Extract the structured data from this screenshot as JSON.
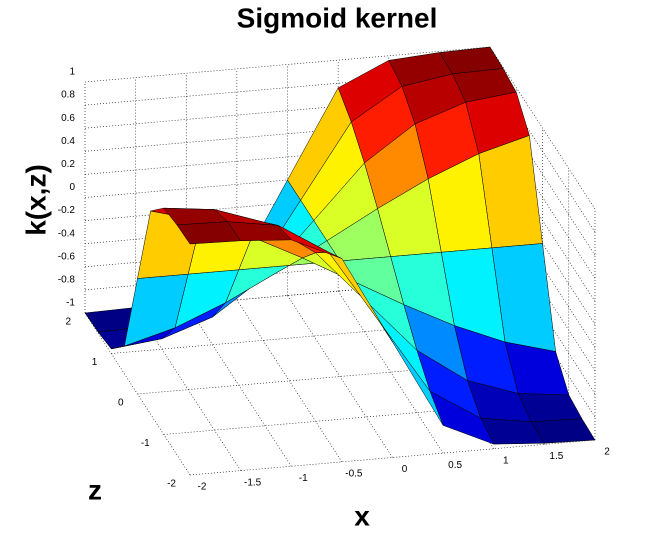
{
  "chart_data": {
    "type": "surface",
    "title": "Sigmoid kernel",
    "xlabel": "x",
    "zlabel": "z",
    "ylabel": "k(x,z)",
    "x": [
      -2,
      -1.5,
      -1,
      -0.5,
      0,
      0.5,
      1,
      1.5,
      2
    ],
    "z": [
      -2,
      -1.5,
      -1,
      -0.5,
      0,
      0.5,
      1,
      1.5,
      2
    ],
    "values": [
      [
        1,
        0.99,
        0.96,
        0.76,
        0,
        -0.76,
        -0.96,
        -0.99,
        -1
      ],
      [
        0.99,
        0.98,
        0.91,
        0.64,
        0,
        -0.64,
        -0.91,
        -0.98,
        -0.99
      ],
      [
        0.96,
        0.91,
        0.76,
        0.46,
        0,
        -0.46,
        -0.76,
        -0.91,
        -0.96
      ],
      [
        0.76,
        0.64,
        0.46,
        0.24,
        0,
        -0.24,
        -0.46,
        -0.64,
        -0.76
      ],
      [
        0,
        0,
        0,
        0,
        0,
        0,
        0,
        0,
        0
      ],
      [
        -0.76,
        -0.64,
        -0.46,
        -0.24,
        0,
        0.24,
        0.46,
        0.64,
        0.76
      ],
      [
        -0.96,
        -0.91,
        -0.76,
        -0.46,
        0,
        0.46,
        0.76,
        0.91,
        0.96
      ],
      [
        -0.99,
        -0.98,
        -0.91,
        -0.64,
        0,
        0.64,
        0.91,
        0.98,
        0.99
      ],
      [
        -1,
        -0.99,
        -0.96,
        -0.76,
        0,
        0.76,
        0.96,
        0.99,
        1
      ]
    ],
    "xlim": [
      -2,
      2
    ],
    "xticks": [
      -2,
      -1.5,
      -1,
      -0.5,
      0,
      0.5,
      1,
      1.5,
      2
    ],
    "zlim": [
      -2,
      2
    ],
    "zticks": [
      -2,
      -1,
      0,
      1,
      2
    ],
    "ylim": [
      -1,
      1
    ],
    "yticks": [
      -1,
      -0.8,
      -0.6,
      -0.4,
      -0.2,
      0,
      0.2,
      0.4,
      0.6,
      0.8,
      1
    ],
    "colormap": "jet",
    "grid": true
  }
}
